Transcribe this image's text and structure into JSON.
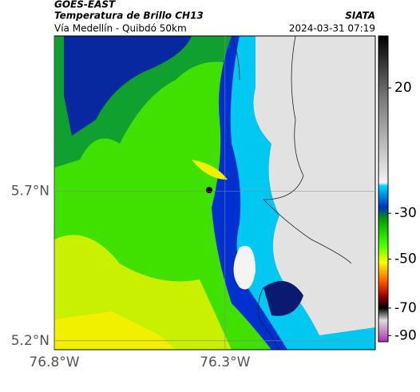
{
  "header": {
    "source": "GOES-EAST",
    "title": "Temperatura de Brillo CH13",
    "agency": "SIATA",
    "subtitle": "Vía Medellín - Quibdó 50km",
    "timestamp": "2024-03-31 07:19"
  },
  "map": {
    "xlim": [
      -76.8,
      -75.86
    ],
    "ylim": [
      5.17,
      6.22
    ],
    "xticks": [
      {
        "value": -76.8,
        "label": "76.8°W"
      },
      {
        "value": -76.3,
        "label": "76.3°W"
      }
    ],
    "yticks": [
      {
        "value": 5.2,
        "label": "5.2°N"
      },
      {
        "value": 5.7,
        "label": "5.7°N"
      }
    ],
    "grid": true
  },
  "colorbar": {
    "ticks": [
      20,
      -30,
      -50,
      -70,
      -90
    ]
  }
}
